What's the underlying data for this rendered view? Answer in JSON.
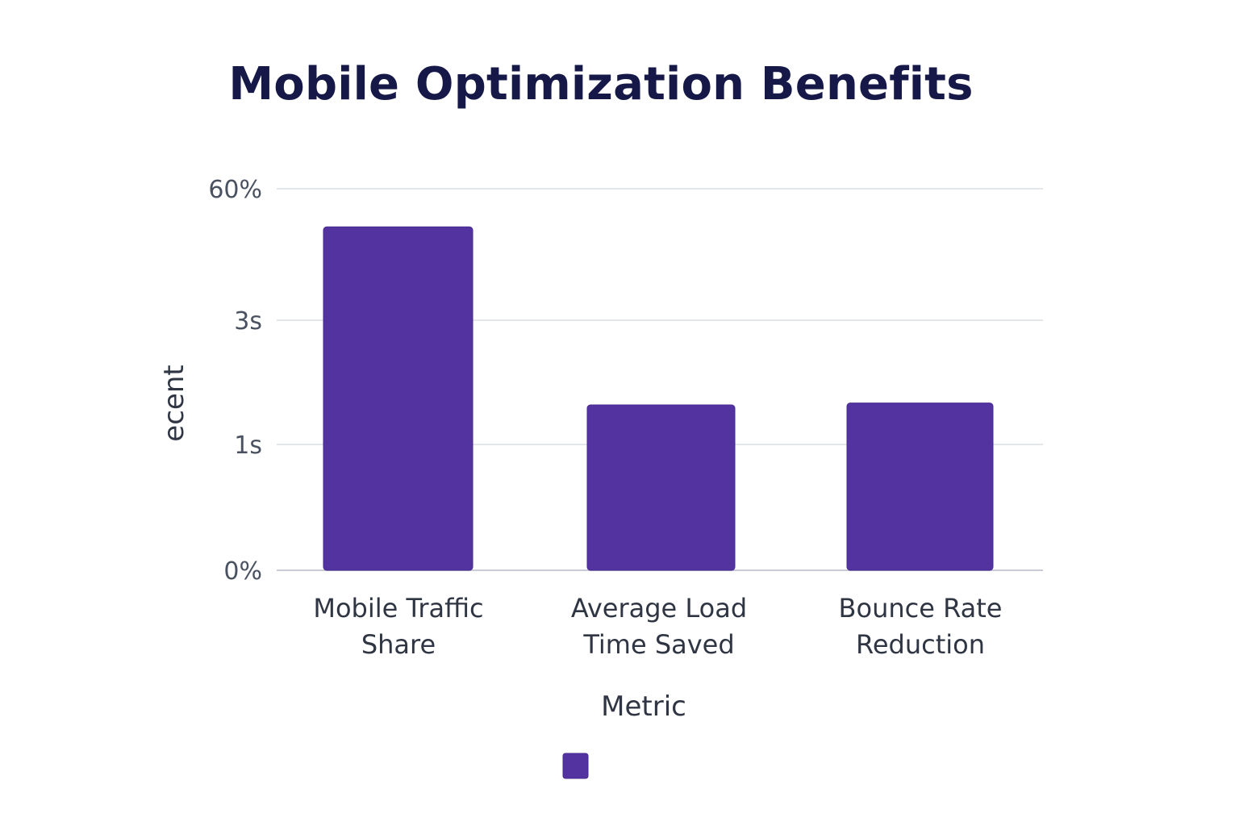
{
  "chart_data": {
    "type": "bar",
    "title": "Mobile Optimization Benefits",
    "xlabel": "Metric",
    "ylabel": "ecent",
    "y_tick_labels": [
      "0%",
      "1s",
      "3s",
      "60%"
    ],
    "categories": [
      [
        "Mobile Traffic",
        "Share"
      ],
      [
        "Average Load",
        "Time Saved"
      ],
      [
        "Bounce Rate",
        "Reduction"
      ]
    ],
    "values": [
      54,
      26,
      26.3
    ],
    "ylim": [
      0,
      60
    ],
    "grid": true,
    "legend": {
      "placement": "bottom-center",
      "entries": [
        {
          "name": "",
          "color": "#5333a0"
        }
      ]
    },
    "bar_color": "#5333a0"
  }
}
